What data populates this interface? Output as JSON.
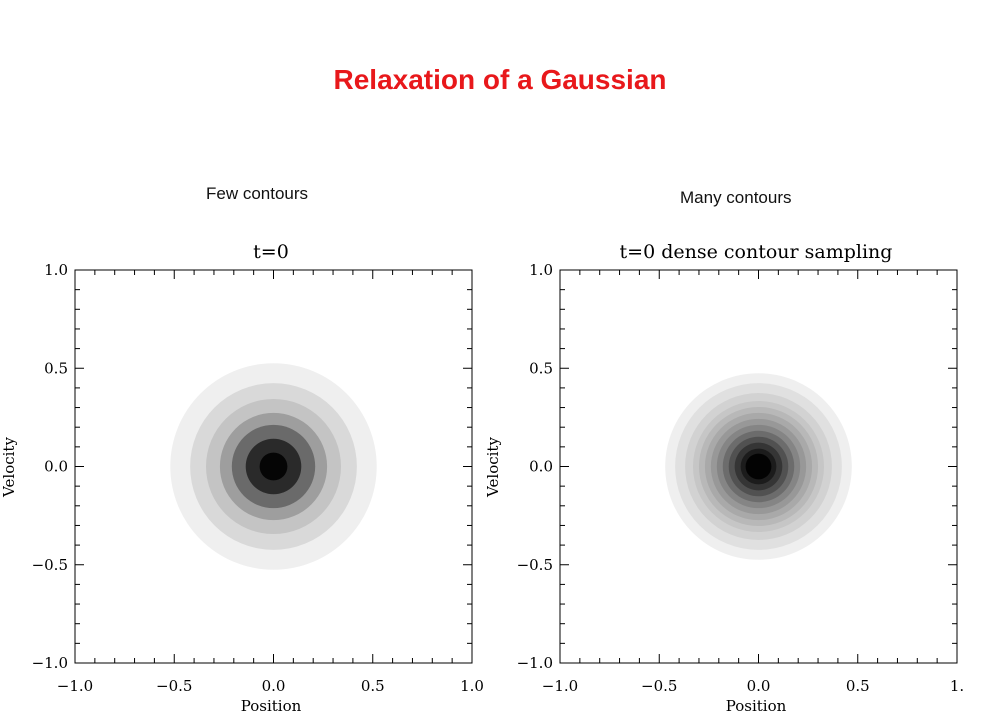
{
  "slide": {
    "title": "Relaxation of a Gaussian"
  },
  "panels": [
    {
      "subtitle": "Few contours"
    },
    {
      "subtitle": "Many contours"
    }
  ],
  "chart_data": [
    {
      "type": "heatmap",
      "title": "t=0",
      "xlabel": "Position",
      "ylabel": "Velocity",
      "xlim": [
        -1.0,
        1.0
      ],
      "ylim": [
        -1.0,
        1.0
      ],
      "xticks": [
        "-1.0",
        "-0.5",
        "0.0",
        "0.5",
        "1.0"
      ],
      "yticks": [
        "-1.0",
        "-0.5",
        "0.0",
        "0.5",
        "1.0"
      ],
      "contour_radii": [
        0.52,
        0.42,
        0.34,
        0.27,
        0.21,
        0.14,
        0.07
      ],
      "contour_colors": [
        "#efefef",
        "#d9d9d9",
        "#c4c4c4",
        "#9e9e9e",
        "#6a6a6a",
        "#2a2a2a",
        "#050505"
      ]
    },
    {
      "type": "heatmap",
      "title": "t=0 dense contour sampling",
      "xlabel": "Position",
      "ylabel": "Velocity",
      "xlim": [
        -1.0,
        1.0
      ],
      "ylim": [
        -1.0,
        1.0
      ],
      "xticks": [
        "-1.0",
        "-0.5",
        "0.0",
        "0.5",
        "1."
      ],
      "yticks": [
        "-1.0",
        "-0.5",
        "0.0",
        "0.5",
        "1.0"
      ],
      "contour_radii": [
        0.47,
        0.42,
        0.37,
        0.33,
        0.3,
        0.27,
        0.24,
        0.21,
        0.18,
        0.15,
        0.12,
        0.09,
        0.065
      ],
      "contour_colors": [
        "#efefef",
        "#e0e0e0",
        "#d2d2d2",
        "#c6c6c6",
        "#b8b8b8",
        "#a9a9a9",
        "#989898",
        "#858585",
        "#6c6c6c",
        "#515151",
        "#353535",
        "#1c1c1c",
        "#030303"
      ]
    }
  ]
}
